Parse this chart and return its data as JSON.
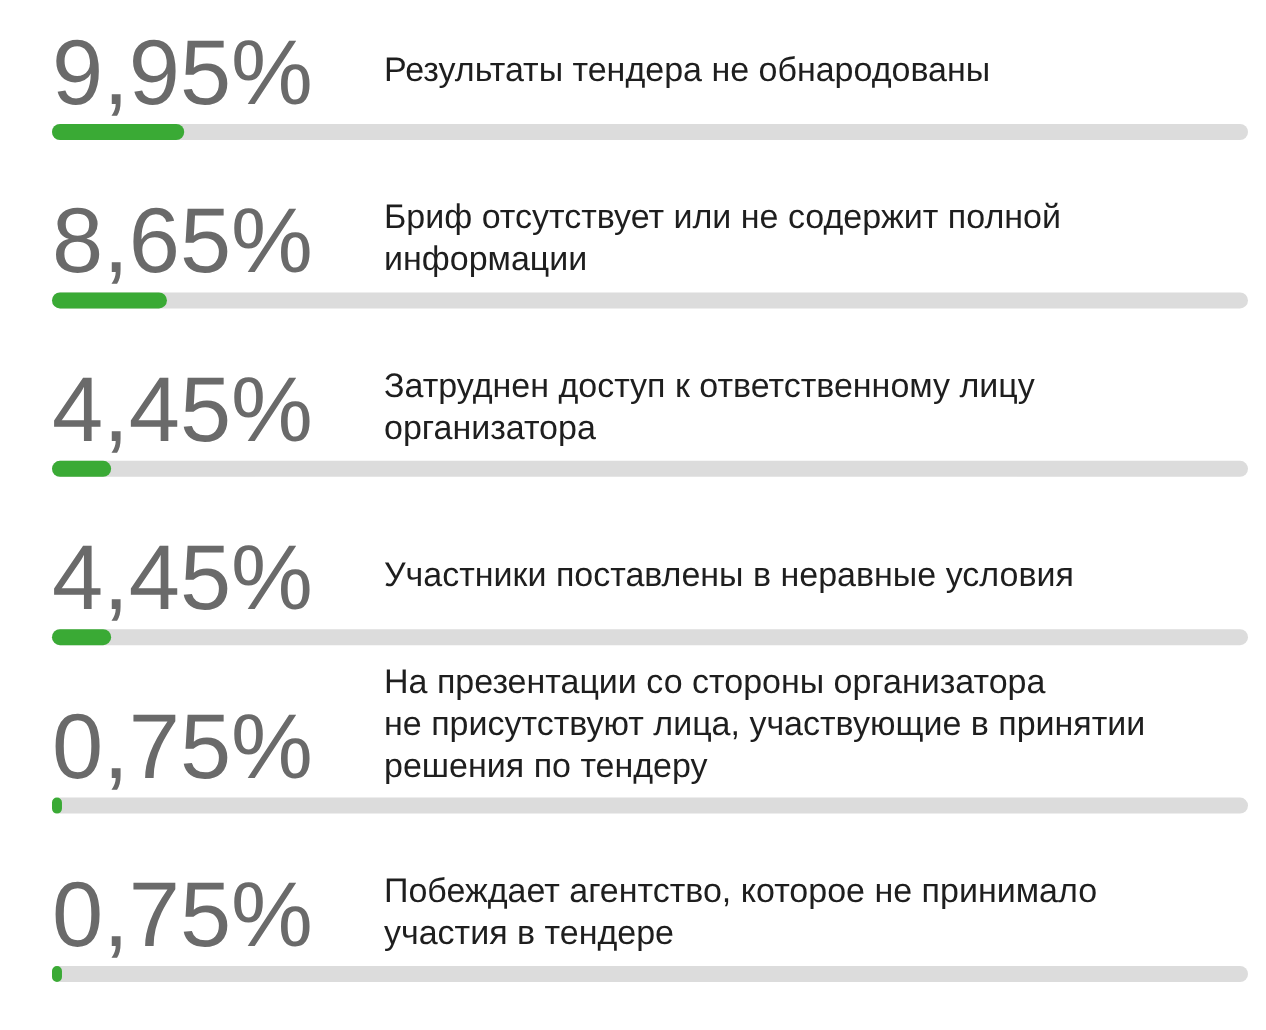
{
  "chart_data": {
    "type": "bar",
    "orientation": "horizontal",
    "categories": [
      "Результаты тендера не обнародованы",
      "Бриф отсутствует или не содержит полной\nинформации",
      "Затруднен доступ к ответственному лицу\nорганизатора",
      "Участники поставлены в неравные условия",
      "На презентации со стороны организатора\nне присутствуют лица, участвующие в принятии\nрешения по тендеру",
      "Побеждает агентство, которое не принимало\nучастия в тендере"
    ],
    "values": [
      9.95,
      8.65,
      4.45,
      4.45,
      0.75,
      0.75
    ],
    "value_labels": [
      "9,95%",
      "8,65%",
      "4,45%",
      "4,45%",
      "0,75%",
      "0,75%"
    ],
    "color": "#3aaa35",
    "xlim": [
      0,
      90
    ],
    "tick_labels": "y"
  }
}
